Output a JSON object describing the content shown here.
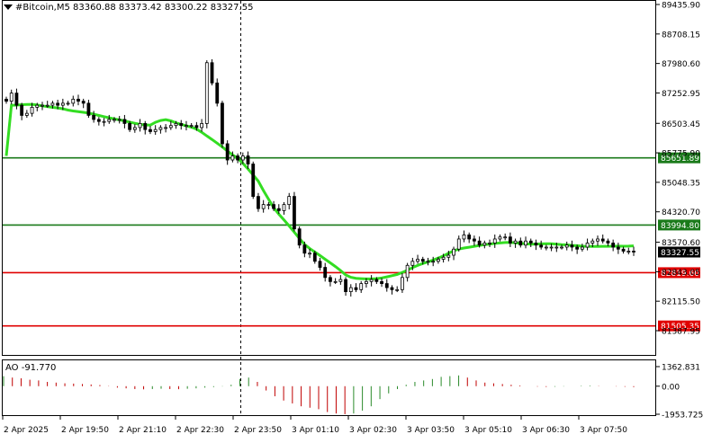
{
  "window": {
    "symbol_title": "#Bitcoin,M5",
    "ohlc": "83360.88 83373.42 83300.22 83327.55"
  },
  "price_axis": {
    "ticks": [
      "89435.90",
      "88708.15",
      "87980.60",
      "87252.95",
      "86503.45",
      "85775.90",
      "85048.35",
      "84320.70",
      "83570.60",
      "82843.05",
      "82115.50",
      "81387.95"
    ],
    "min": 81387.95,
    "max": 89435.9
  },
  "levels": [
    {
      "label": "85651.89",
      "value": 85651.89,
      "color": "#1a7a1a",
      "kind": "green"
    },
    {
      "label": "83994.80",
      "value": 83994.8,
      "color": "#1a7a1a",
      "kind": "green"
    },
    {
      "label": "82819.60",
      "value": 82819.6,
      "color": "#e00000",
      "kind": "red"
    },
    {
      "label": "81505.35",
      "value": 81505.35,
      "color": "#e00000",
      "kind": "red"
    }
  ],
  "current_price": {
    "label": "83327.55",
    "value": 83327.55
  },
  "ao": {
    "title": "AO -91.770",
    "ticks": [
      "1362.831",
      "0.00",
      "-1953.725"
    ],
    "max": 1362.831,
    "min": -1953.725
  },
  "time_axis": {
    "labels": [
      "2 Apr 2025",
      "2 Apr 19:50",
      "2 Apr 21:10",
      "2 Apr 22:30",
      "2 Apr 23:50",
      "3 Apr 01:10",
      "3 Apr 02:30",
      "3 Apr 03:50",
      "3 Apr 05:10",
      "3 Apr 06:30",
      "3 Apr 07:50"
    ]
  },
  "colors": {
    "ma": "#33dd22",
    "ao_up": "#2a8a2a",
    "ao_down": "#c00000",
    "candle": "#000000",
    "grid": "#000000"
  },
  "chart_data": {
    "type": "candlestick",
    "symbol": "#Bitcoin",
    "timeframe": "M5",
    "close": [
      87050,
      87250,
      86950,
      86700,
      86750,
      86900,
      86950,
      86950,
      86950,
      87000,
      86950,
      87000,
      87000,
      87100,
      87050,
      87000,
      86700,
      86600,
      86550,
      86550,
      86600,
      86600,
      86600,
      86500,
      86350,
      86400,
      86500,
      86350,
      86300,
      86350,
      86400,
      86400,
      86450,
      86500,
      86450,
      86450,
      86450,
      86400,
      86500,
      88000,
      87500,
      87000,
      86000,
      85600,
      85700,
      85600,
      85700,
      85500,
      84700,
      84400,
      84500,
      84500,
      84400,
      84350,
      84500,
      84700,
      83900,
      83500,
      83300,
      83300,
      83100,
      82950,
      82700,
      82600,
      82600,
      82650,
      82350,
      82450,
      82400,
      82550,
      82600,
      82650,
      82600,
      82550,
      82450,
      82400,
      82400,
      82700,
      83000,
      83100,
      83150,
      83100,
      83100,
      83100,
      83150,
      83200,
      83250,
      83400,
      83650,
      83750,
      83650,
      83600,
      83500,
      83550,
      83550,
      83650,
      83700,
      83700,
      83550,
      83600,
      83500,
      83600,
      83550,
      83500,
      83450,
      83450,
      83450,
      83450,
      83450,
      83500,
      83450,
      83400,
      83450,
      83550,
      83600,
      83650,
      83600,
      83550,
      83450,
      83400,
      83350,
      83350,
      83330
    ],
    "moving_average": {
      "name": "",
      "values_start": 85700,
      "peak": 86650,
      "end": 83550
    },
    "ao_values": [
      700,
      600,
      550,
      450,
      400,
      300,
      250,
      200,
      180,
      150,
      120,
      80,
      20,
      -100,
      -150,
      -200,
      -220,
      -200,
      -180,
      -200,
      -210,
      -180,
      -150,
      -100,
      -60,
      -20,
      100,
      500,
      600,
      300,
      -300,
      -700,
      -1000,
      -1200,
      -1400,
      -1500,
      -1600,
      -1800,
      -1900,
      -1950,
      -1900,
      -1700,
      -1400,
      -900,
      -500,
      -200,
      100,
      300,
      400,
      500,
      650,
      700,
      750,
      600,
      400,
      250,
      200,
      150,
      100,
      50,
      0,
      -30,
      -50,
      -40,
      -20,
      0,
      30,
      40,
      20,
      0,
      -20,
      -40,
      -60
    ]
  }
}
